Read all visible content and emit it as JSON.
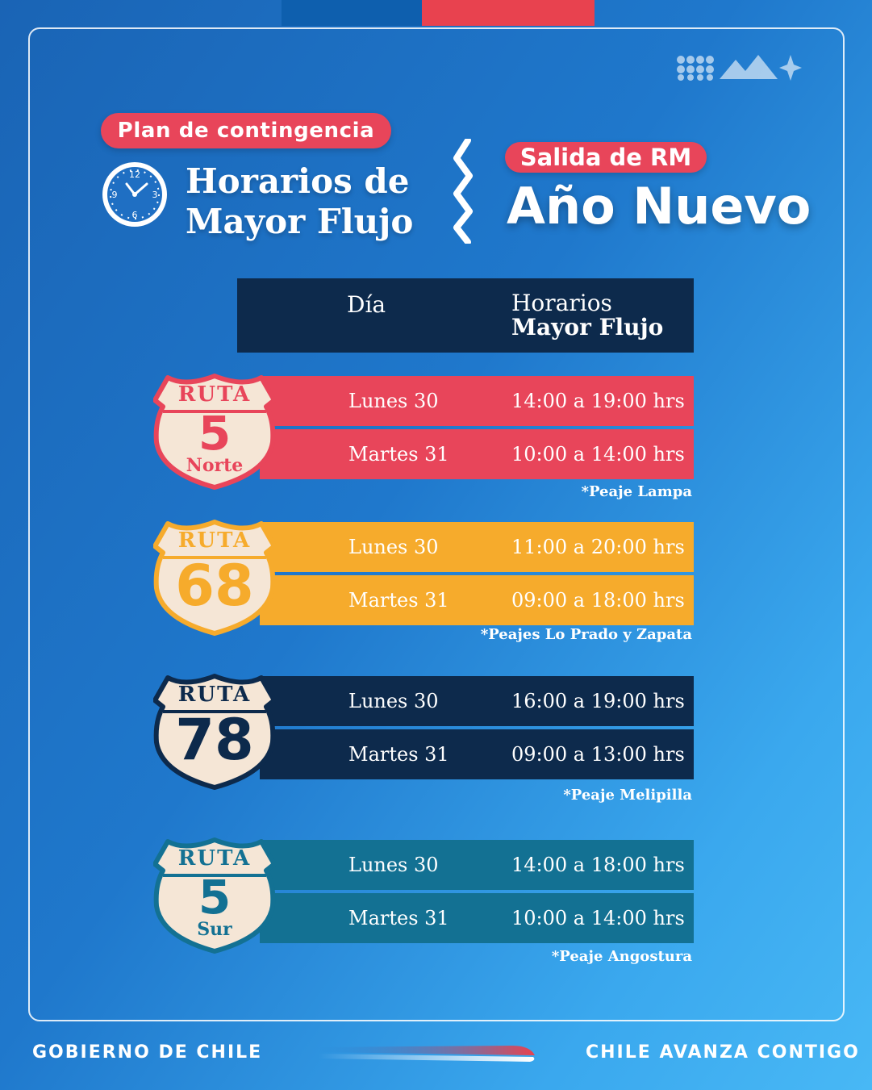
{
  "header": {
    "pill": "Plan de contingencia",
    "title_line1": "Horarios de",
    "title_line2": "Mayor Flujo",
    "salida": "Salida de RM",
    "event": "Año Nuevo"
  },
  "table": {
    "col_day": "Día",
    "col_hours_line1": "Horarios",
    "col_hours_line2": "Mayor Flujo"
  },
  "routes": [
    {
      "shield_top": "RUTA",
      "number": "5",
      "sub": "Norte",
      "color": "#e8455a",
      "shield_color": "#e8455a",
      "rows": [
        {
          "day": "Lunes 30",
          "hours": "14:00 a 19:00 hrs"
        },
        {
          "day": "Martes 31",
          "hours": "10:00 a 14:00 hrs"
        }
      ],
      "note": "*Peaje Lampa"
    },
    {
      "shield_top": "RUTA",
      "number": "68",
      "sub": "",
      "color": "#f6ab2c",
      "shield_color": "#f6ab2c",
      "rows": [
        {
          "day": "Lunes 30",
          "hours": "11:00 a 20:00 hrs"
        },
        {
          "day": "Martes 31",
          "hours": "09:00 a 18:00 hrs"
        }
      ],
      "note": "*Peajes Lo Prado y Zapata"
    },
    {
      "shield_top": "RUTA",
      "number": "78",
      "sub": "",
      "color": "#0d2a4c",
      "shield_color": "#0d2a4c",
      "rows": [
        {
          "day": "Lunes 30",
          "hours": "16:00 a 19:00 hrs"
        },
        {
          "day": "Martes 31",
          "hours": "09:00 a 13:00 hrs"
        }
      ],
      "note": "*Peaje Melipilla"
    },
    {
      "shield_top": "RUTA",
      "number": "5",
      "sub": "Sur",
      "color": "#137193",
      "shield_color": "#137193",
      "rows": [
        {
          "day": "Lunes 30",
          "hours": "14:00 a 18:00 hrs"
        },
        {
          "day": "Martes 31",
          "hours": "10:00 a 14:00 hrs"
        }
      ],
      "note": "*Peaje Angostura"
    }
  ],
  "footer": {
    "left": "GOBIERNO DE CHILE",
    "right": "CHILE AVANZA CONTIGO"
  },
  "icons": [
    "clock-icon",
    "dots-mountain-star-icon",
    "zigzag-divider-icon",
    "route-shield-icon"
  ]
}
